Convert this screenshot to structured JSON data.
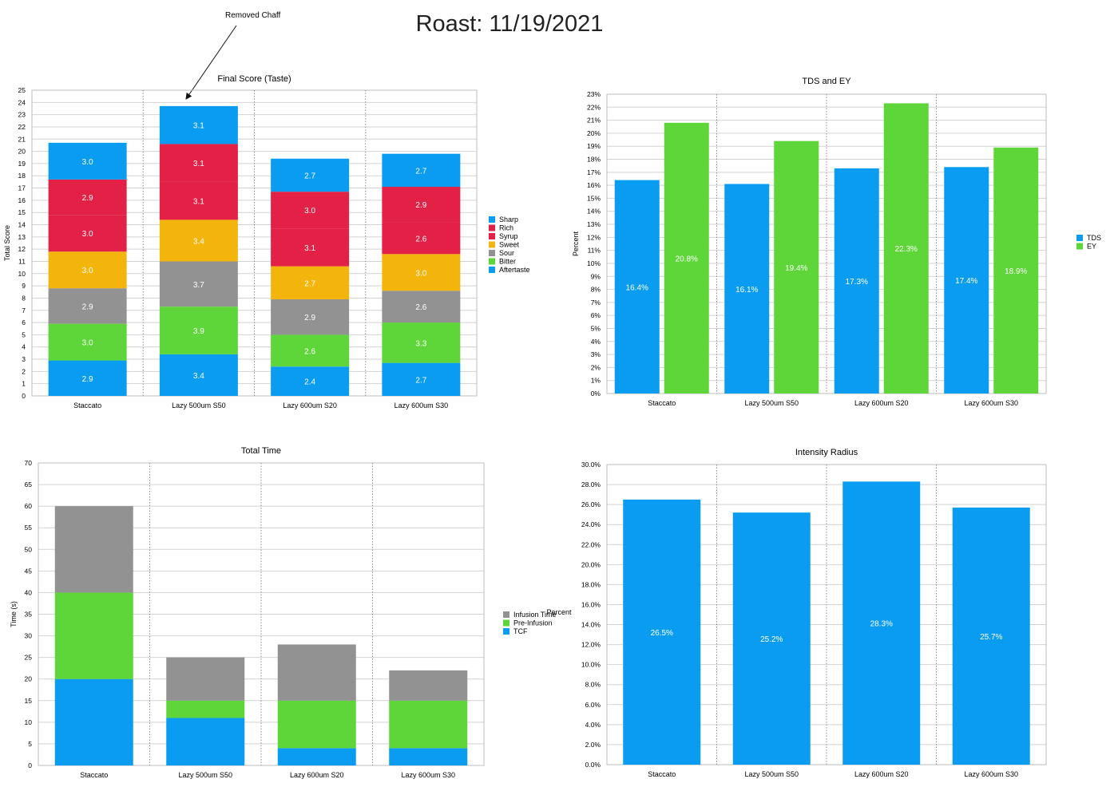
{
  "page": {
    "title": "Roast: 11/19/2021"
  },
  "annotation": {
    "text": "Removed Chaff",
    "target_category": "Lazy 500um S50"
  },
  "colors": {
    "Sharp": "#0a9cf0",
    "Rich": "#e32045",
    "Syrup": "#e32045",
    "Sweet": "#f3b40c",
    "Sour": "#929292",
    "Bitter": "#5ed63a",
    "Aftertaste": "#0a9cf0",
    "TDS": "#0a9cf0",
    "EY": "#5ed63a",
    "Infusion Time": "#929292",
    "Pre-Infusion": "#5ed63a",
    "TCF": "#0a9cf0",
    "Intensity": "#0a9cf0"
  },
  "chart_data": [
    {
      "id": "final-score",
      "type": "bar",
      "stacked": true,
      "title": "Final Score (Taste)",
      "ylabel": "Total Score",
      "xlabel": "",
      "ylim": [
        0,
        25
      ],
      "ytick_step": 1,
      "yunit": "",
      "grid": true,
      "legend": "right",
      "categories": [
        "Staccato",
        "Lazy 500um S50",
        "Lazy 600um S20",
        "Lazy 600um S30"
      ],
      "series": [
        {
          "name": "Aftertaste",
          "values": [
            2.9,
            3.4,
            2.4,
            2.7
          ],
          "labels": [
            "2.9",
            "3.4",
            "2.4",
            "2.7"
          ]
        },
        {
          "name": "Bitter",
          "values": [
            3.0,
            3.9,
            2.6,
            3.3
          ],
          "labels": [
            "3.0",
            "3.9",
            "2.6",
            "3.3"
          ]
        },
        {
          "name": "Sour",
          "values": [
            2.9,
            3.7,
            2.9,
            2.6
          ],
          "labels": [
            "2.9",
            "3.7",
            "2.9",
            "2.6"
          ]
        },
        {
          "name": "Sweet",
          "values": [
            3.0,
            3.4,
            2.7,
            3.0
          ],
          "labels": [
            "3.0",
            "3.4",
            "2.7",
            "3.0"
          ]
        },
        {
          "name": "Syrup",
          "values": [
            3.0,
            3.1,
            3.1,
            2.6
          ],
          "labels": [
            "3.0",
            "3.1",
            "3.1",
            "2.6"
          ]
        },
        {
          "name": "Rich",
          "values": [
            2.9,
            3.1,
            3.0,
            2.9
          ],
          "labels": [
            "2.9",
            "3.1",
            "3.0",
            "2.9"
          ]
        },
        {
          "name": "Sharp",
          "values": [
            3.0,
            3.1,
            2.7,
            2.7
          ],
          "labels": [
            "3.0",
            "3.1",
            "2.7",
            "2.7"
          ]
        }
      ],
      "legend_order": [
        "Sharp",
        "Rich",
        "Syrup",
        "Sweet",
        "Sour",
        "Bitter",
        "Aftertaste"
      ]
    },
    {
      "id": "tds-ey",
      "type": "bar",
      "stacked": false,
      "title": "TDS and EY",
      "ylabel": "Percent",
      "xlabel": "",
      "ylim": [
        0,
        23
      ],
      "ytick_step": 1,
      "yunit": "%",
      "grid": true,
      "legend": "right",
      "categories": [
        "Staccato",
        "Lazy 500um S50",
        "Lazy 600um S20",
        "Lazy 600um S30"
      ],
      "series": [
        {
          "name": "TDS",
          "values": [
            16.4,
            16.1,
            17.3,
            17.4
          ],
          "labels": [
            "16.4%",
            "16.1%",
            "17.3%",
            "17.4%"
          ]
        },
        {
          "name": "EY",
          "values": [
            20.8,
            19.4,
            22.3,
            18.9
          ],
          "labels": [
            "20.8%",
            "19.4%",
            "22.3%",
            "18.9%"
          ]
        }
      ],
      "legend_order": [
        "TDS",
        "EY"
      ]
    },
    {
      "id": "total-time",
      "type": "bar",
      "stacked": true,
      "title": "Total Time",
      "ylabel": "Time (s)",
      "xlabel": "",
      "ylim": [
        0,
        70
      ],
      "ytick_step": 5,
      "yunit": "",
      "grid": true,
      "legend": "right",
      "categories": [
        "Staccato",
        "Lazy 500um S50",
        "Lazy 600um S20",
        "Lazy 600um S30"
      ],
      "series": [
        {
          "name": "TCF",
          "values": [
            20,
            11,
            4,
            4
          ]
        },
        {
          "name": "Pre-Infusion",
          "values": [
            20,
            4,
            11,
            11
          ]
        },
        {
          "name": "Infusion Time",
          "values": [
            20,
            10,
            13,
            7
          ]
        }
      ],
      "legend_order": [
        "Infusion Time",
        "Pre-Infusion",
        "TCF"
      ]
    },
    {
      "id": "intensity-radius",
      "type": "bar",
      "stacked": false,
      "title": "Intensity Radius",
      "ylabel": "Percent",
      "xlabel": "",
      "ylim": [
        0,
        30
      ],
      "ytick_step": 2,
      "ytick_decimals": 1,
      "yunit": "%",
      "grid": true,
      "legend": "none",
      "categories": [
        "Staccato",
        "Lazy 500um S50",
        "Lazy 600um S20",
        "Lazy 600um S30"
      ],
      "series": [
        {
          "name": "Intensity",
          "values": [
            26.5,
            25.2,
            28.3,
            25.7
          ],
          "labels": [
            "26.5%",
            "25.2%",
            "28.3%",
            "25.7%"
          ]
        }
      ],
      "legend_order": []
    }
  ]
}
